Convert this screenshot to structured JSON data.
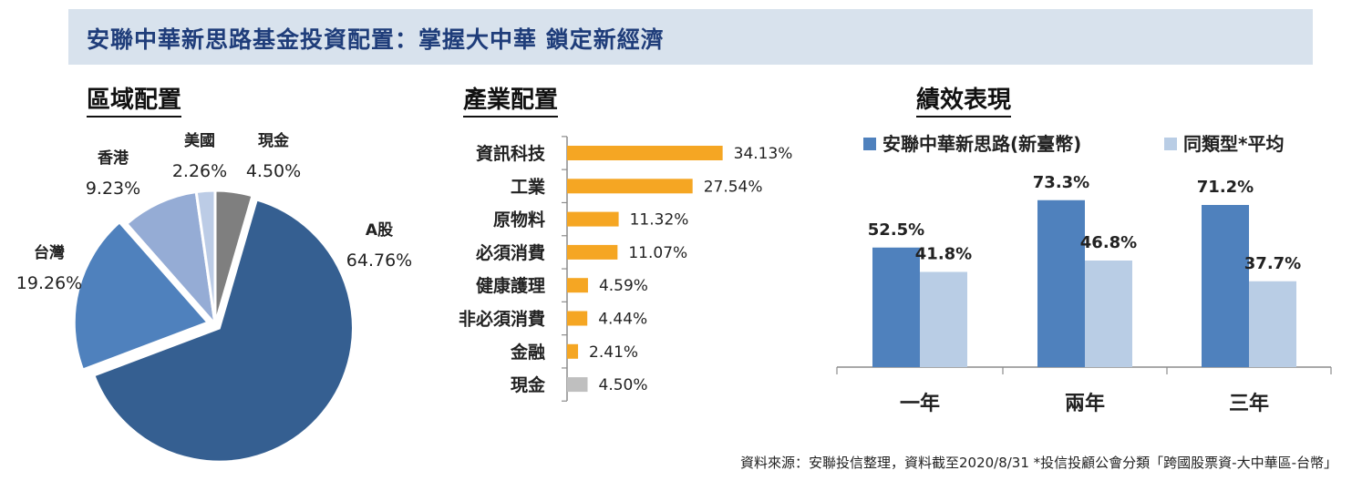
{
  "page": {
    "title": "安聯中華新思路基金投資配置：掌握大中華 鎖定新經濟",
    "footnote": "資料來源：安聯投信整理，資料截至2020/8/31 *投信投顧公會分類「跨國股票資-大中華區-台幣」"
  },
  "colors": {
    "banner_bg": "#d8e2ed",
    "title_text": "#1f3d7a",
    "pie_a_share": "#355f91",
    "pie_taiwan": "#4f81bd",
    "pie_hongkong": "#95acd5",
    "pie_usa": "#bccce6",
    "pie_cash": "#7f7f7f",
    "bar_orange": "#f5a623",
    "bar_gray": "#bfbfbf",
    "fund_blue": "#4f81bd",
    "peer_light": "#b9cde5"
  },
  "chart_data": [
    {
      "type": "pie",
      "title": "區域配置",
      "slices": [
        {
          "label": "A股",
          "value": 64.76,
          "display": "64.76%"
        },
        {
          "label": "台灣",
          "value": 19.26,
          "display": "19.26%"
        },
        {
          "label": "香港",
          "value": 9.23,
          "display": "9.23%"
        },
        {
          "label": "美國",
          "value": 2.26,
          "display": "2.26%"
        },
        {
          "label": "現金",
          "value": 4.5,
          "display": "4.50%"
        }
      ],
      "start_angle_from_top": "clockwise, 現金 starts at 12 o'clock"
    },
    {
      "type": "bar",
      "orientation": "horizontal",
      "title": "產業配置",
      "categories": [
        "資訊科技",
        "工業",
        "原物料",
        "必須消費",
        "健康護理",
        "非必須消費",
        "金融",
        "現金"
      ],
      "values": [
        34.13,
        27.54,
        11.32,
        11.07,
        4.59,
        4.44,
        2.41,
        4.5
      ],
      "labels": [
        "34.13%",
        "27.54%",
        "11.32%",
        "11.07%",
        "4.59%",
        "4.44%",
        "2.41%",
        "4.50%"
      ],
      "highlight_last_category_gray": true
    },
    {
      "type": "bar",
      "title": "績效表現",
      "categories": [
        "一年",
        "兩年",
        "三年"
      ],
      "series": [
        {
          "name": "安聯中華新思路(新臺幣)",
          "values": [
            52.5,
            73.3,
            71.2
          ],
          "labels": [
            "52.5%",
            "73.3%",
            "71.2%"
          ]
        },
        {
          "name": "同類型*平均",
          "values": [
            41.8,
            46.8,
            37.7
          ],
          "labels": [
            "41.8%",
            "46.8%",
            "37.7%"
          ]
        }
      ],
      "ylim": [
        0,
        100
      ],
      "legend": "top",
      "grid": false
    }
  ]
}
